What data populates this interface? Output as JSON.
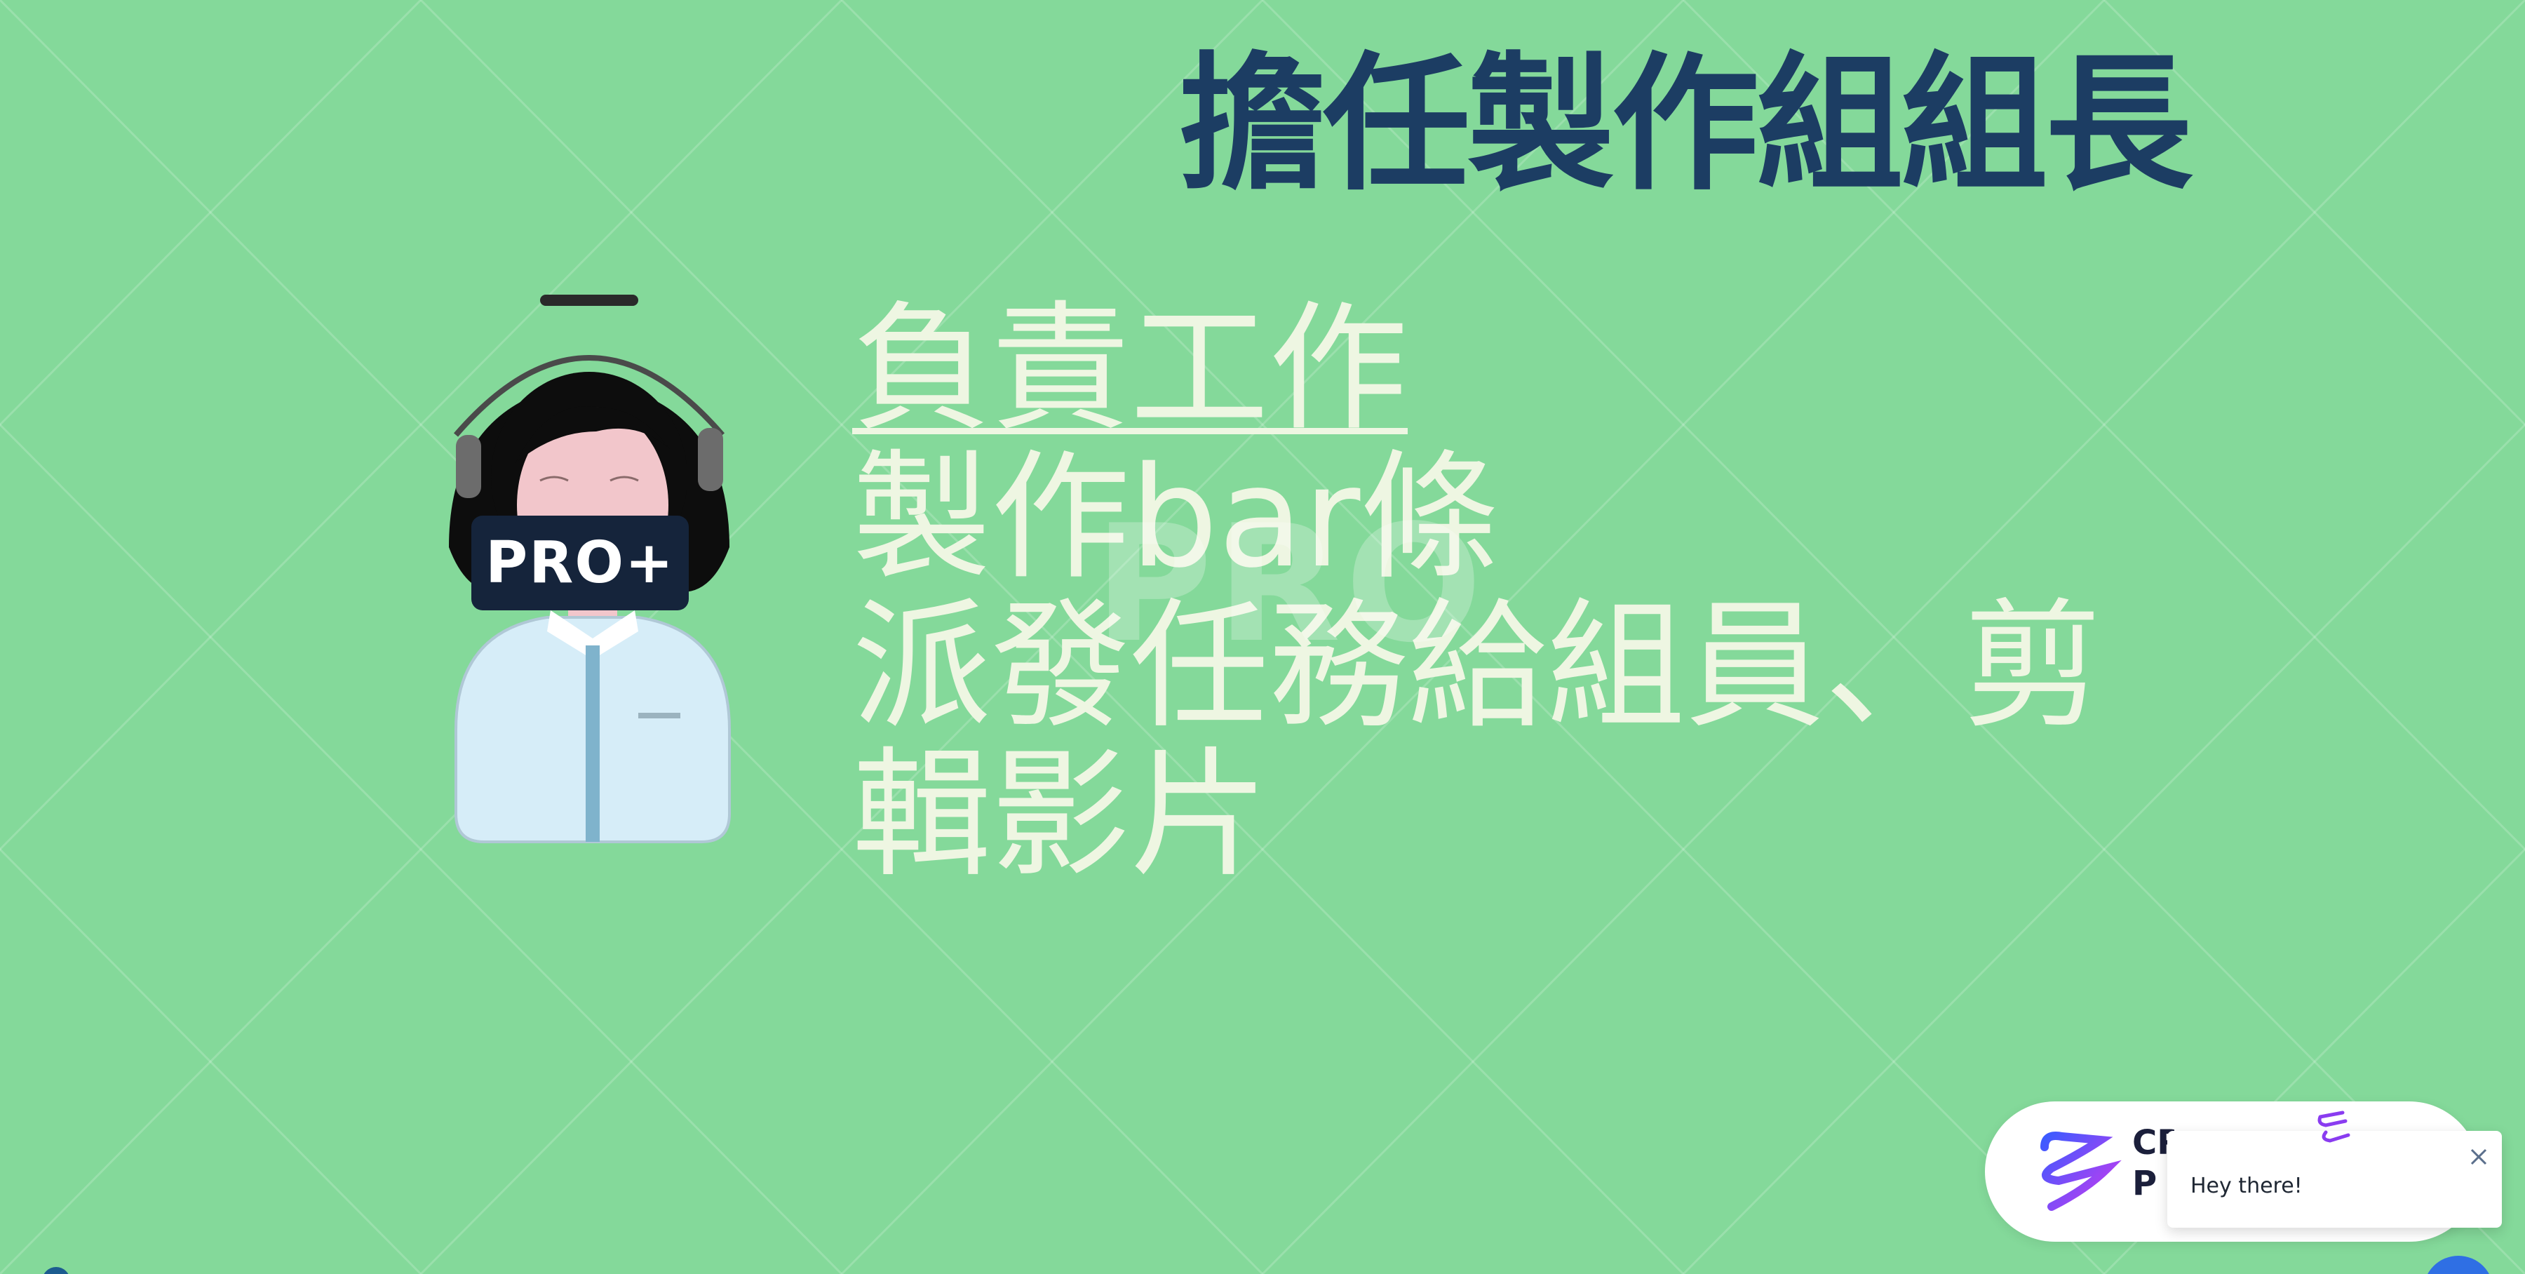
{
  "slide": {
    "title": "擔任製作組組長",
    "body": {
      "heading": "負責工作",
      "line1": "製作bar條",
      "line2": "派發任務給組員、剪",
      "line3": "輯影片"
    },
    "watermark": "PRO"
  },
  "avatar": {
    "badge": "PRO+"
  },
  "brand": {
    "name_line1": "CR",
    "name_line2": "P"
  },
  "chat": {
    "message": "Hey there!",
    "close_icon": "close-icon"
  },
  "colors": {
    "background": "#84d99a",
    "title": "#1c3d63",
    "body_text": "#eef6e2",
    "badge_bg": "#15243b",
    "launcher": "#2f6fe4"
  }
}
